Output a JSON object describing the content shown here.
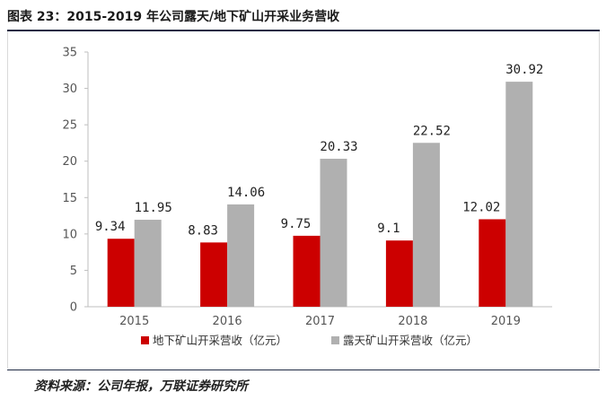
{
  "title": "图表 23：2015-2019 年公司露天/地下矿山开采业务营收",
  "source": "资料来源：公司年报，万联证券研究所",
  "chart_data": {
    "type": "bar",
    "categories": [
      "2015",
      "2016",
      "2017",
      "2018",
      "2019"
    ],
    "series": [
      {
        "name": "地下矿山开采营收（亿元）",
        "color": "#cc0000",
        "values": [
          9.34,
          8.83,
          9.75,
          9.1,
          12.02
        ],
        "labels": [
          "9.34",
          "8.83",
          "9.75",
          "9.1",
          "12.02"
        ]
      },
      {
        "name": "露天矿山开采营收（亿元）",
        "color": "#b0b0b0",
        "values": [
          11.95,
          14.06,
          20.33,
          22.52,
          30.92
        ],
        "labels": [
          "11.95",
          "14.06",
          "20.33",
          "22.52",
          "30.92"
        ]
      }
    ],
    "ylim": [
      0,
      35
    ],
    "yticks": [
      0,
      5,
      10,
      15,
      20,
      25,
      30,
      35
    ],
    "grid": false,
    "legend_position": "bottom"
  }
}
